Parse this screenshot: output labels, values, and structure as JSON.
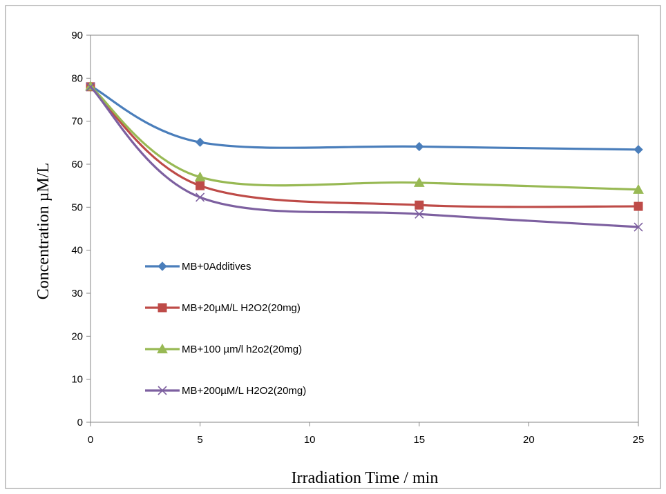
{
  "chart_data": {
    "type": "line",
    "smooth": true,
    "xlabel": "Irradiation Time / min",
    "ylabel": "Concentration  µM/L",
    "xlim": [
      0,
      25
    ],
    "ylim": [
      0,
      90
    ],
    "x_ticks": [
      0,
      5,
      10,
      15,
      20,
      25
    ],
    "y_ticks": [
      0,
      10,
      20,
      30,
      40,
      50,
      60,
      70,
      80,
      90
    ],
    "x_tick_labels": [
      "0",
      "5",
      "10",
      "15",
      "20",
      "25"
    ],
    "y_tick_labels": [
      "0",
      "10",
      "20",
      "30",
      "40",
      "50",
      "60",
      "70",
      "80",
      "90"
    ],
    "grid": false,
    "legend_position": "left-middle",
    "x": [
      0,
      5,
      15,
      25
    ],
    "series": [
      {
        "name": "MB+0Additives",
        "values": [
          78.2,
          65.1,
          64.1,
          63.4
        ],
        "color": "#4a7ebb",
        "marker": "diamond"
      },
      {
        "name": "MB+20µM/L H2O2(20mg)",
        "values": [
          78.0,
          55.0,
          50.5,
          50.2
        ],
        "color": "#be4b48",
        "marker": "square"
      },
      {
        "name": "MB+100 µm/l h2o2(20mg)",
        "values": [
          78.1,
          57.0,
          55.7,
          54.1
        ],
        "color": "#98b954",
        "marker": "triangle"
      },
      {
        "name": "MB+200µM/L H2O2(20mg)",
        "values": [
          78.0,
          52.3,
          48.4,
          45.4
        ],
        "color": "#7d60a0",
        "marker": "x"
      }
    ]
  }
}
